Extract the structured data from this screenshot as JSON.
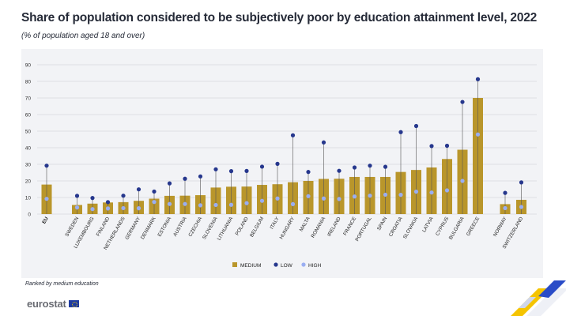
{
  "title": "Share of population considered to be subjectively poor by education attainment level, 2022",
  "subtitle": "(% of population aged 18 and over)",
  "note": "Ranked by medium education",
  "logo_text": "eurostat",
  "colors": {
    "medium": "#b9962b",
    "low": "#26378d",
    "high": "#9aaef2",
    "panel": "#f2f3f6",
    "grid": "#d6d8de"
  },
  "chart_data": {
    "type": "bar",
    "ylim": [
      0,
      90
    ],
    "yticks": [
      0,
      10,
      20,
      30,
      40,
      50,
      60,
      70,
      80,
      90
    ],
    "grid": true,
    "legend_position": "bottom",
    "categories": [
      "EU",
      "Sweden",
      "Luxembourg",
      "Finland",
      "Netherlands",
      "Germany",
      "Denmark",
      "Estonia",
      "Austria",
      "Czechia",
      "Slovenia",
      "Lithuania",
      "Poland",
      "Belgium",
      "Italy",
      "Hungary",
      "Malta",
      "Romania",
      "Ireland",
      "France",
      "Portugal",
      "Spain",
      "Croatia",
      "Slovakia",
      "Latvia",
      "Cyprus",
      "Bulgaria",
      "Greece",
      "Norway",
      "Switzerland"
    ],
    "series": [
      {
        "name": "MEDIUM",
        "type": "bar",
        "values": [
          17.8,
          5.5,
          6.3,
          7.0,
          7.2,
          8.0,
          9.3,
          11.0,
          11.1,
          11.4,
          16.0,
          16.5,
          16.6,
          17.6,
          18.0,
          19.2,
          20.0,
          21.2,
          21.3,
          22.4,
          22.4,
          22.4,
          25.4,
          26.6,
          28.1,
          33.2,
          38.8,
          70.0,
          6.0,
          8.6
        ]
      },
      {
        "name": "LOW",
        "type": "point",
        "values": [
          29.2,
          11.0,
          9.7,
          7.2,
          11.1,
          14.9,
          13.6,
          18.5,
          21.3,
          22.7,
          27.0,
          25.9,
          26.0,
          28.6,
          30.3,
          47.5,
          25.4,
          43.2,
          26.1,
          28.1,
          29.2,
          28.5,
          49.4,
          53.1,
          41.0,
          41.2,
          67.6,
          81.3,
          12.8,
          19.1
        ]
      },
      {
        "name": "HIGH",
        "type": "point",
        "values": [
          9.2,
          4.0,
          3.0,
          3.4,
          3.6,
          3.5,
          7.3,
          6.1,
          6.1,
          5.3,
          5.5,
          5.6,
          6.6,
          8.0,
          9.4,
          6.0,
          10.8,
          9.4,
          9.1,
          10.6,
          11.1,
          11.7,
          11.6,
          13.5,
          13.0,
          14.3,
          20.0,
          48.0,
          3.6,
          4.3
        ]
      }
    ],
    "xlabels": [
      "EU",
      "SWEDEN",
      "LUXEMBOURG",
      "FINLAND",
      "NETHERLANDS",
      "GERMANY",
      "DENMARK",
      "ESTONIA",
      "AUSTRIA",
      "CZECHIA",
      "SLOVENIA",
      "LITHUANIA",
      "POLAND",
      "BELGIUM",
      "ITALY",
      "HUNGARY",
      "MALTA",
      "ROMANIA",
      "IRELAND",
      "FRANCE",
      "PORTUGAL",
      "SPAIN",
      "CROATIA",
      "SLOVAKIA",
      "LATVIA",
      "CYPRUS",
      "BULGARIA",
      "GREECE",
      "NORWAY",
      "SWITZERLAND"
    ]
  }
}
